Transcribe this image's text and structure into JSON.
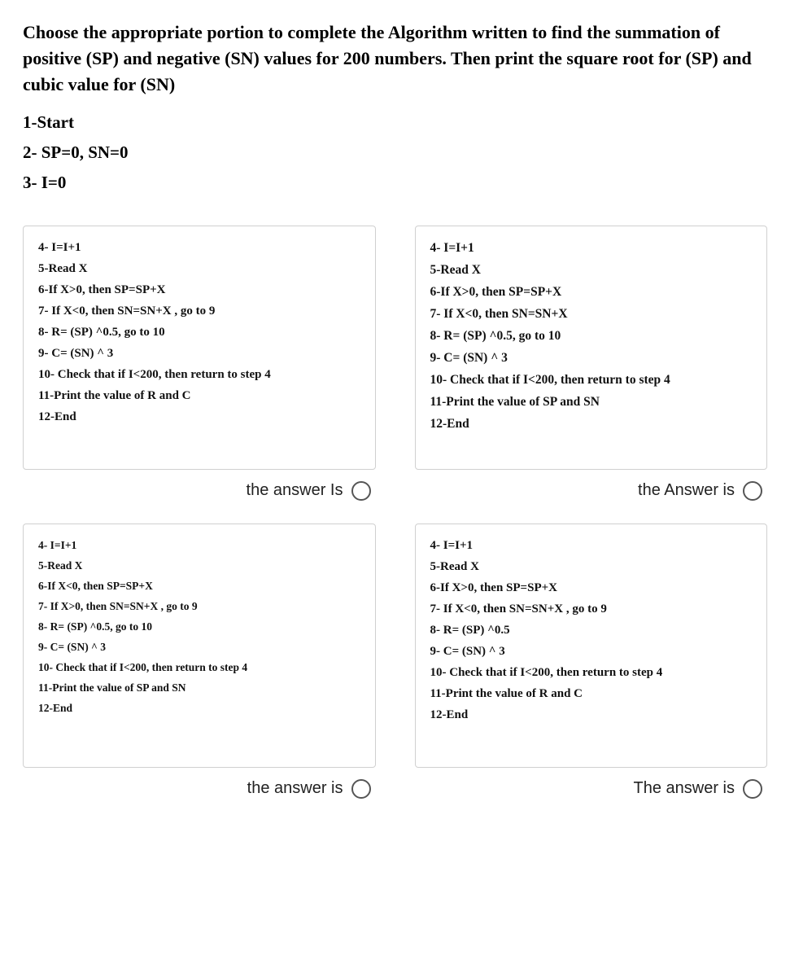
{
  "question": {
    "stem": "Choose the appropriate portion to complete the Algorithm written to find the summation of positive (SP) and negative (SN) values for 200 numbers. Then print the square root for (SP) and cubic value for (SN)",
    "setup": [
      "1-Start",
      "2- SP=0, SN=0",
      "3- I=0"
    ]
  },
  "options": {
    "a": {
      "lines": [
        "4- I=I+1",
        "5-Read X",
        "6-If X>0, then SP=SP+X",
        "7- If X<0, then SN=SN+X , go to 9",
        "8- R= (SP) ^0.5, go to 10",
        "9- C= (SN) ^ 3",
        "10- Check that if I<200, then return to step 4",
        "11-Print the value of R and C",
        "12-End"
      ],
      "answer_label": "the answer Is"
    },
    "b": {
      "lines": [
        "4- I=I+1",
        "5-Read X",
        "6-If X>0, then SP=SP+X",
        "7- If X<0, then SN=SN+X",
        "8- R= (SP) ^0.5, go to 10",
        "9- C= (SN) ^ 3",
        "10- Check that if I<200, then return to step 4",
        "11-Print the value of SP and SN",
        "12-End"
      ],
      "answer_label": "the Answer is"
    },
    "c": {
      "lines": [
        "4- I=I+1",
        "5-Read X",
        "6-If X<0, then SP=SP+X",
        "7- If X>0, then SN=SN+X , go to 9",
        "8- R= (SP) ^0.5, go to 10",
        "9- C= (SN) ^ 3",
        "10- Check that if I<200, then return to step 4",
        "11-Print the value of SP and SN",
        "12-End"
      ],
      "answer_label": "the answer is"
    },
    "d": {
      "lines": [
        "4- I=I+1",
        "5-Read X",
        "6-If X>0, then SP=SP+X",
        "7- If X<0, then SN=SN+X , go to 9",
        "8- R= (SP) ^0.5",
        "9- C= (SN) ^ 3",
        "10- Check that if I<200, then return to step 4",
        "11-Print the value of R and C",
        "12-End"
      ],
      "answer_label": "The answer is"
    }
  },
  "styles": {
    "font_sizes": {
      "stem": 22,
      "setup": 21,
      "card_a": 15,
      "card_b": 15.5,
      "card_c": 13.5,
      "card_d": 15,
      "answer_label": 20
    },
    "colors": {
      "text": "#000000",
      "card_border": "#d0d0d0",
      "radio_border": "#555555",
      "background": "#ffffff"
    }
  }
}
